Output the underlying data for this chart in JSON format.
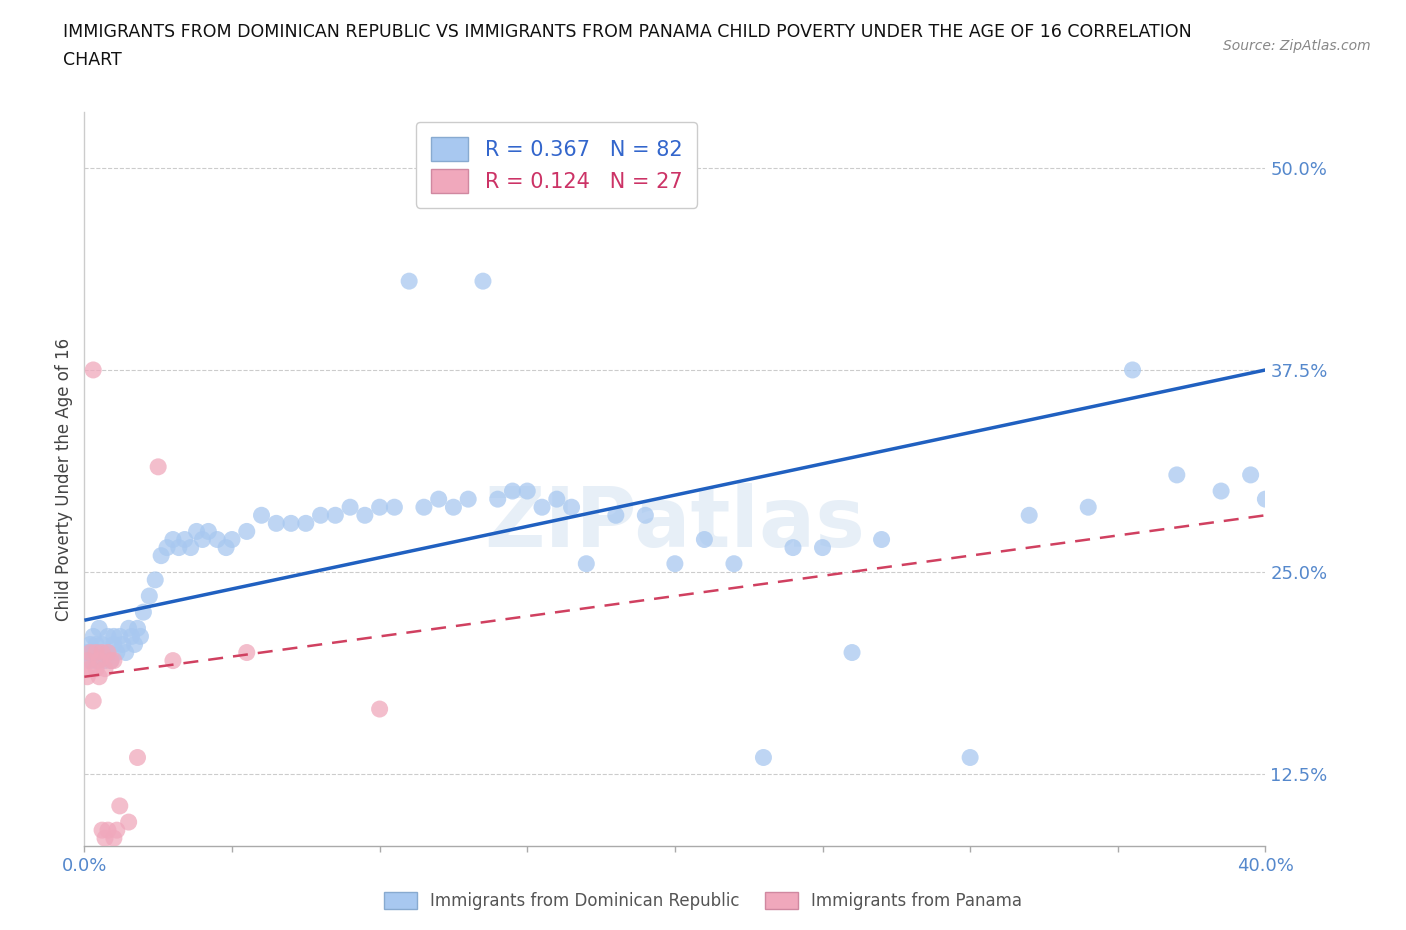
{
  "title_line1": "IMMIGRANTS FROM DOMINICAN REPUBLIC VS IMMIGRANTS FROM PANAMA CHILD POVERTY UNDER THE AGE OF 16 CORRELATION",
  "title_line2": "CHART",
  "source": "Source: ZipAtlas.com",
  "ylabel": "Child Poverty Under the Age of 16",
  "xlim": [
    0.0,
    0.4
  ],
  "ylim": [
    0.08,
    0.535
  ],
  "xtick_positions": [
    0.0,
    0.05,
    0.1,
    0.15,
    0.2,
    0.25,
    0.3,
    0.35,
    0.4
  ],
  "xticklabels": [
    "0.0%",
    "",
    "",
    "",
    "",
    "",
    "",
    "",
    "40.0%"
  ],
  "ytick_positions": [
    0.125,
    0.25,
    0.375,
    0.5
  ],
  "yticklabels": [
    "12.5%",
    "25.0%",
    "37.5%",
    "50.0%"
  ],
  "blue_color": "#a8c8f0",
  "pink_color": "#f0a8bc",
  "blue_line_color": "#2060c0",
  "pink_line_color": "#d04060",
  "watermark": "ZIPatlas",
  "blue_x": [
    0.001,
    0.002,
    0.002,
    0.003,
    0.003,
    0.004,
    0.004,
    0.005,
    0.005,
    0.006,
    0.007,
    0.008,
    0.008,
    0.009,
    0.01,
    0.01,
    0.011,
    0.012,
    0.013,
    0.014,
    0.015,
    0.016,
    0.017,
    0.018,
    0.019,
    0.02,
    0.022,
    0.024,
    0.026,
    0.028,
    0.03,
    0.032,
    0.034,
    0.036,
    0.038,
    0.04,
    0.042,
    0.045,
    0.048,
    0.05,
    0.055,
    0.06,
    0.065,
    0.07,
    0.075,
    0.08,
    0.085,
    0.09,
    0.095,
    0.1,
    0.105,
    0.11,
    0.115,
    0.12,
    0.125,
    0.13,
    0.135,
    0.14,
    0.145,
    0.15,
    0.155,
    0.16,
    0.165,
    0.17,
    0.18,
    0.19,
    0.2,
    0.21,
    0.22,
    0.23,
    0.24,
    0.25,
    0.26,
    0.27,
    0.3,
    0.32,
    0.34,
    0.355,
    0.37,
    0.385,
    0.395,
    0.4
  ],
  "blue_y": [
    0.2,
    0.205,
    0.195,
    0.21,
    0.2,
    0.205,
    0.195,
    0.215,
    0.2,
    0.205,
    0.195,
    0.21,
    0.2,
    0.195,
    0.21,
    0.205,
    0.2,
    0.21,
    0.205,
    0.2,
    0.215,
    0.21,
    0.205,
    0.215,
    0.21,
    0.225,
    0.235,
    0.245,
    0.26,
    0.265,
    0.27,
    0.265,
    0.27,
    0.265,
    0.275,
    0.27,
    0.275,
    0.27,
    0.265,
    0.27,
    0.275,
    0.285,
    0.28,
    0.28,
    0.28,
    0.285,
    0.285,
    0.29,
    0.285,
    0.29,
    0.29,
    0.43,
    0.29,
    0.295,
    0.29,
    0.295,
    0.43,
    0.295,
    0.3,
    0.3,
    0.29,
    0.295,
    0.29,
    0.255,
    0.285,
    0.285,
    0.255,
    0.27,
    0.255,
    0.135,
    0.265,
    0.265,
    0.2,
    0.27,
    0.135,
    0.285,
    0.29,
    0.375,
    0.31,
    0.3,
    0.31,
    0.295
  ],
  "pink_x": [
    0.001,
    0.001,
    0.002,
    0.002,
    0.003,
    0.003,
    0.004,
    0.004,
    0.005,
    0.005,
    0.006,
    0.006,
    0.007,
    0.007,
    0.008,
    0.008,
    0.009,
    0.01,
    0.01,
    0.011,
    0.012,
    0.015,
    0.018,
    0.025,
    0.03,
    0.055,
    0.1
  ],
  "pink_y": [
    0.195,
    0.185,
    0.2,
    0.19,
    0.375,
    0.17,
    0.19,
    0.2,
    0.195,
    0.185,
    0.2,
    0.09,
    0.19,
    0.085,
    0.2,
    0.09,
    0.195,
    0.195,
    0.085,
    0.09,
    0.105,
    0.095,
    0.135,
    0.315,
    0.195,
    0.2,
    0.165
  ],
  "blue_line_y0": 0.22,
  "blue_line_y1": 0.375,
  "pink_line_y0": 0.185,
  "pink_line_y1": 0.285
}
